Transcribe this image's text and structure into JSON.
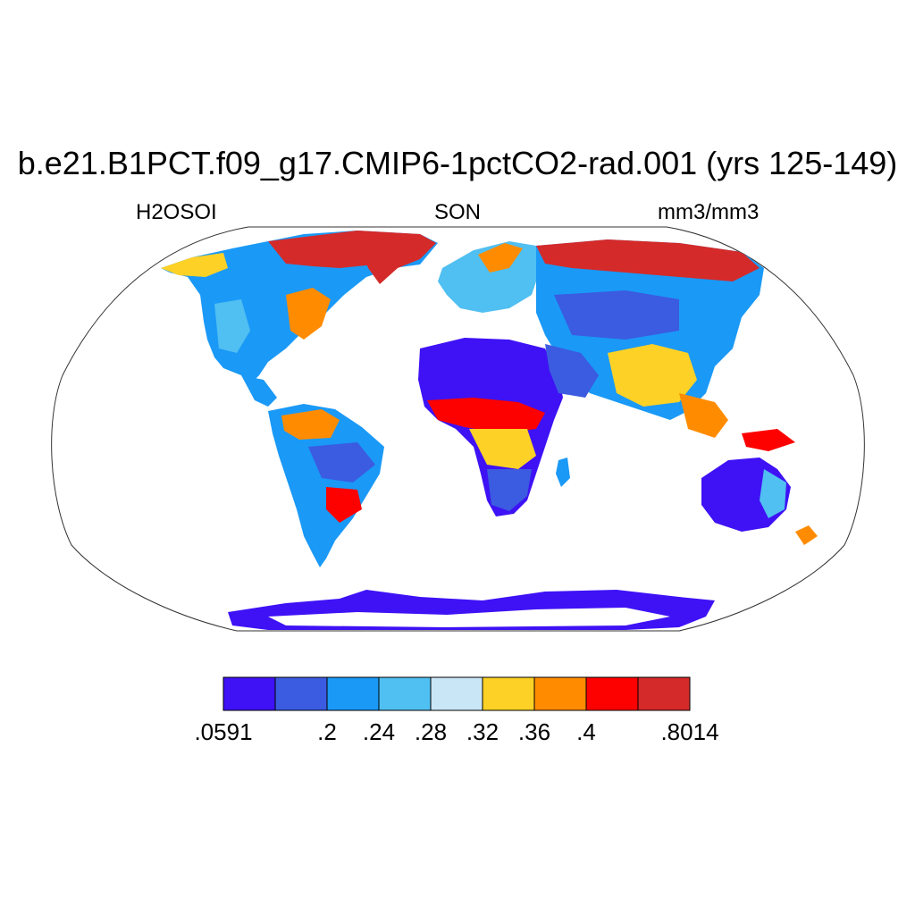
{
  "title": "b.e21.B1PCT.f09_g17.CMIP6-1pctCO2-rad.001 (yrs 125-149)",
  "left_subtitle": "H2OSOI",
  "center_subtitle": "SON",
  "right_subtitle": "mm3/mm3",
  "colorbar": {
    "colors": [
      "#3e12f5",
      "#3b5be0",
      "#1a99f7",
      "#50bff1",
      "#c9e6f6",
      "#fdd126",
      "#ff8c00",
      "#fd0000",
      "#d42a2a"
    ],
    "labels": [
      ".0591",
      ".2",
      ".24",
      ".28",
      ".32",
      ".36",
      ".4",
      ".8014"
    ]
  },
  "projection": "Robinson",
  "ocean_color": "#ffffff"
}
